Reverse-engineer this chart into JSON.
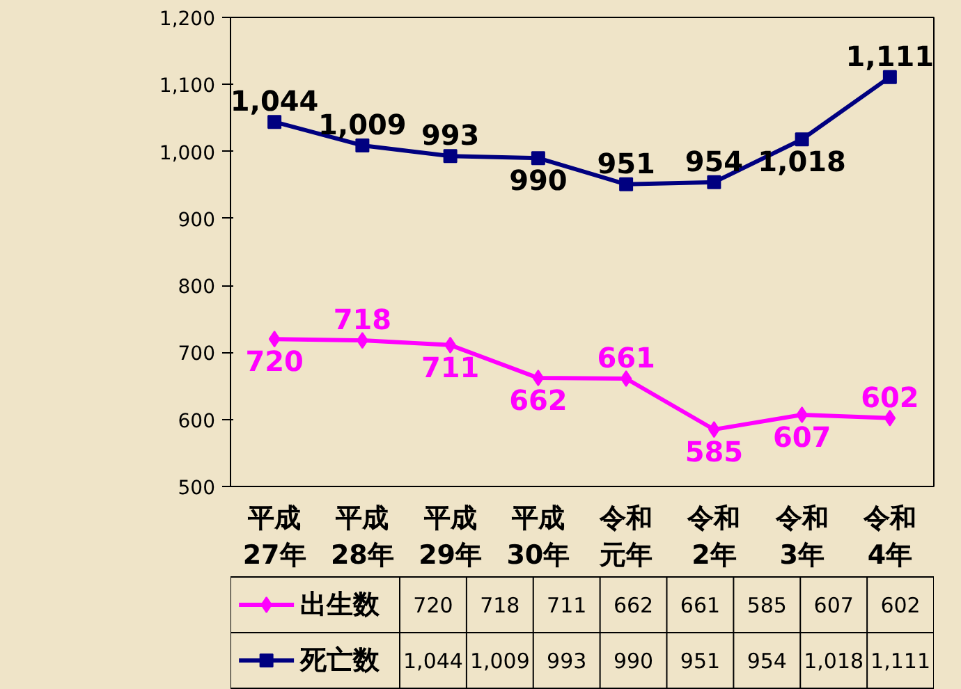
{
  "chart_data": {
    "type": "line",
    "categories": [
      "平成27年",
      "平成28年",
      "平成29年",
      "平成30年",
      "令和元年",
      "令和2年",
      "令和3年",
      "令和4年"
    ],
    "series": [
      {
        "name": "出生数",
        "color": "#ff00ff",
        "marker": "diamond",
        "values": [
          720,
          718,
          711,
          662,
          661,
          585,
          607,
          602
        ],
        "value_labels": [
          "720",
          "718",
          "711",
          "662",
          "661",
          "585",
          "607",
          "602"
        ]
      },
      {
        "name": "死亡数",
        "color": "#000080",
        "marker": "square",
        "values": [
          1044,
          1009,
          993,
          990,
          951,
          954,
          1018,
          1111
        ],
        "value_labels": [
          "1,044",
          "1,009",
          "993",
          "990",
          "951",
          "954",
          "1,018",
          "1,111"
        ]
      }
    ],
    "ylim": [
      500,
      1200
    ],
    "yticks": [
      500,
      600,
      700,
      800,
      900,
      {
        "value": 1000,
        "label": "1,000"
      },
      {
        "value": 1100,
        "label": "1,100"
      },
      {
        "value": 1200,
        "label": "1,200"
      }
    ],
    "legend": "bottom",
    "line_style": "solid"
  }
}
